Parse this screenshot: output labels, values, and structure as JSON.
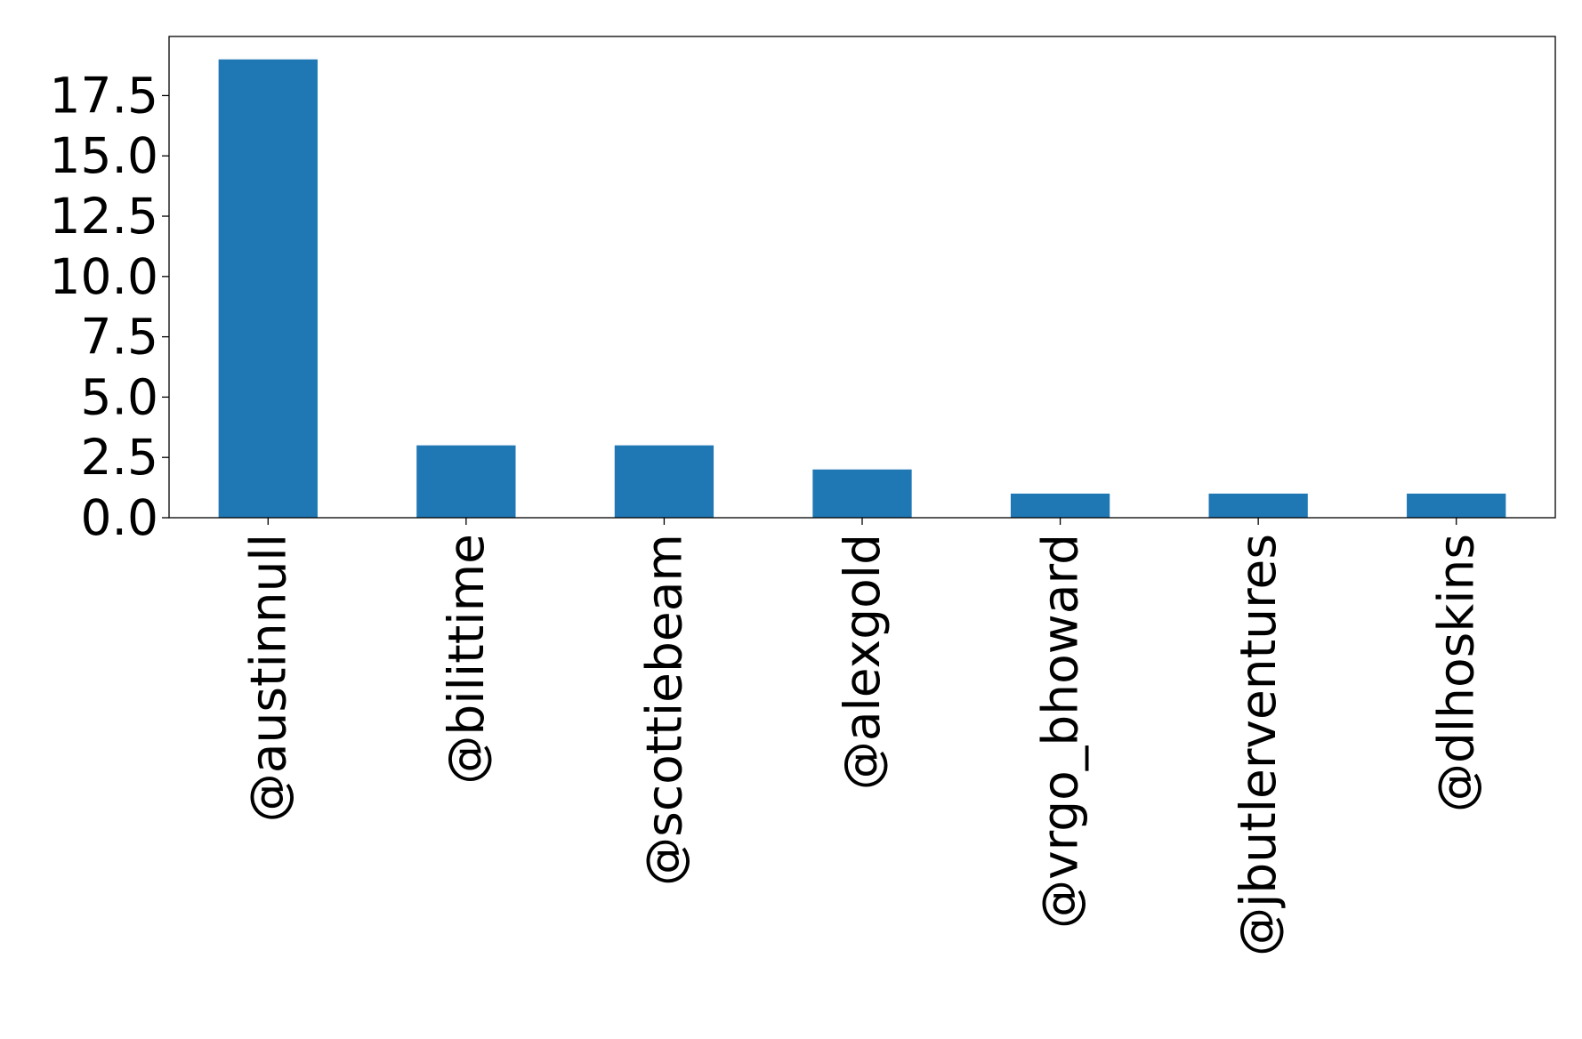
{
  "chart_data": {
    "type": "bar",
    "title": "",
    "xlabel": "",
    "ylabel": "",
    "categories": [
      "@austinnull",
      "@bilittime",
      "@scottiebeam",
      "@alexgold",
      "@vrgo_bhoward",
      "@jbutlerventures",
      "@dlhoskins"
    ],
    "values": [
      19,
      3,
      3,
      2,
      1,
      1,
      1
    ],
    "ylim": [
      0,
      19.95
    ],
    "yticks": [
      "0.0",
      "2.5",
      "5.0",
      "7.5",
      "10.0",
      "12.5",
      "15.0",
      "17.5"
    ],
    "grid": false,
    "bar_color": "#1f77b4"
  }
}
